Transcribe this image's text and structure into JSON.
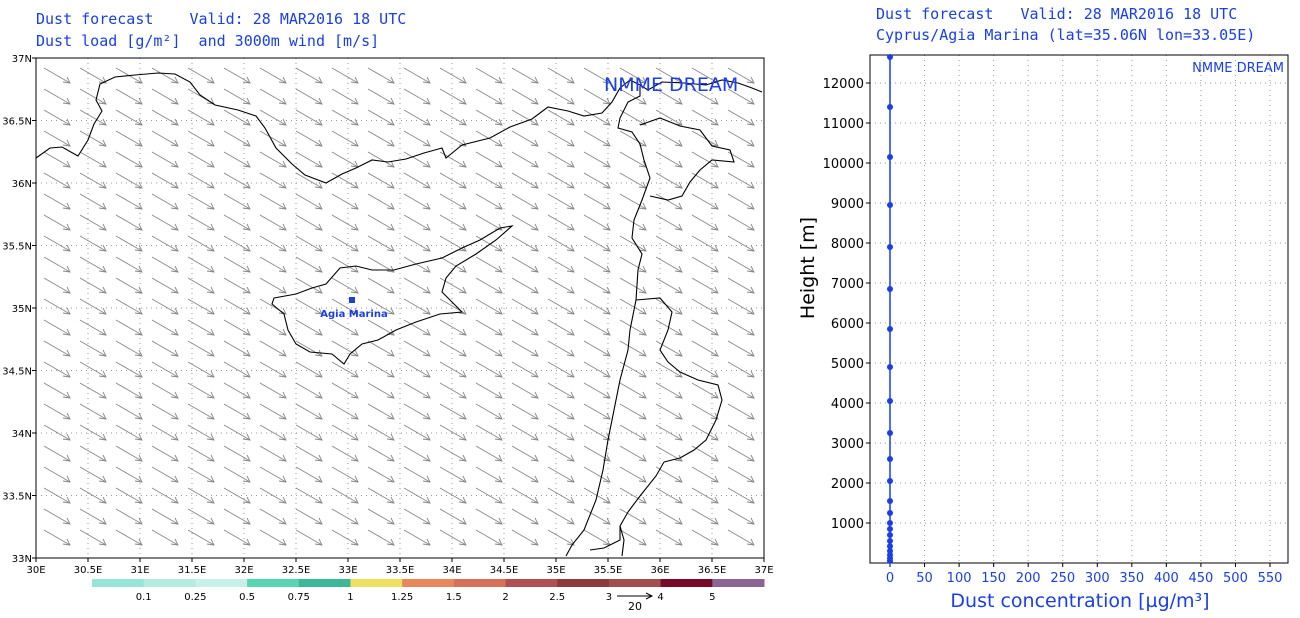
{
  "map_panel": {
    "title_line1": "Dust forecast    Valid: 28 MAR2016 18 UTC",
    "title_line2": "Dust load [g/m²]  and 3000m wind [m/s]",
    "watermark": "NMME DREAM",
    "station_label": "Agia Marina",
    "lon_ticks": [
      "30E",
      "30.5E",
      "31E",
      "31.5E",
      "32E",
      "32.5E",
      "33E",
      "33.5E",
      "34E",
      "34.5E",
      "35E",
      "35.5E",
      "36E",
      "36.5E",
      "37E"
    ],
    "lat_ticks": [
      "37N",
      "36.5N",
      "36N",
      "35.5N",
      "35N",
      "34.5N",
      "34N",
      "33.5N",
      "33N"
    ],
    "colorbar": {
      "colors": [
        "#96e6d7",
        "#b4ece2",
        "#c8f0ea",
        "#58d6b4",
        "#3cb898",
        "#f0e060",
        "#e8875a",
        "#d9705a",
        "#b05050",
        "#8c3a3a",
        "#a0504a",
        "#7a0a2a",
        "#8c6496"
      ],
      "labels": [
        "0.1",
        "0.25",
        "0.5",
        "0.75",
        "1",
        "1.25",
        "1.5",
        "2",
        "2.5",
        "3",
        "4",
        "5"
      ]
    },
    "wind_legend_value": "20"
  },
  "profile_panel": {
    "title_line1": "Dust forecast   Valid: 28 MAR2016 18 UTC",
    "title_line2": "Cyprus/Agia Marina (lat=35.06N lon=33.05E)",
    "watermark": "NMME DREAM",
    "ylabel": "Height [m]",
    "xlabel": "Dust concentration [µg/m³]"
  },
  "chart_data": {
    "type": "line",
    "title": "Cyprus/Agia Marina (lat=35.06N lon=33.05E)",
    "xlabel": "Dust concentration [µg/m³]",
    "ylabel": "Height [m]",
    "xlim": [
      0,
      550
    ],
    "ylim": [
      0,
      12700
    ],
    "x_ticks": [
      0,
      50,
      100,
      150,
      200,
      250,
      300,
      350,
      400,
      450,
      500,
      550
    ],
    "y_ticks": [
      1000,
      2000,
      3000,
      4000,
      5000,
      6000,
      7000,
      8000,
      9000,
      10000,
      11000,
      12000
    ],
    "grid": true,
    "series": [
      {
        "color": "#1a3ee8",
        "heights": [
          50,
          120,
          200,
          300,
          420,
          550,
          700,
          850,
          1000,
          1250,
          1550,
          2050,
          2600,
          3250,
          4050,
          4900,
          5850,
          6850,
          7900,
          8950,
          10150,
          11400,
          12650
        ],
        "values": [
          0,
          0,
          0,
          0,
          0,
          0,
          0,
          0,
          0,
          0,
          0,
          0,
          0,
          0,
          0,
          0,
          0,
          0,
          0,
          0,
          0,
          0,
          0
        ]
      }
    ]
  }
}
